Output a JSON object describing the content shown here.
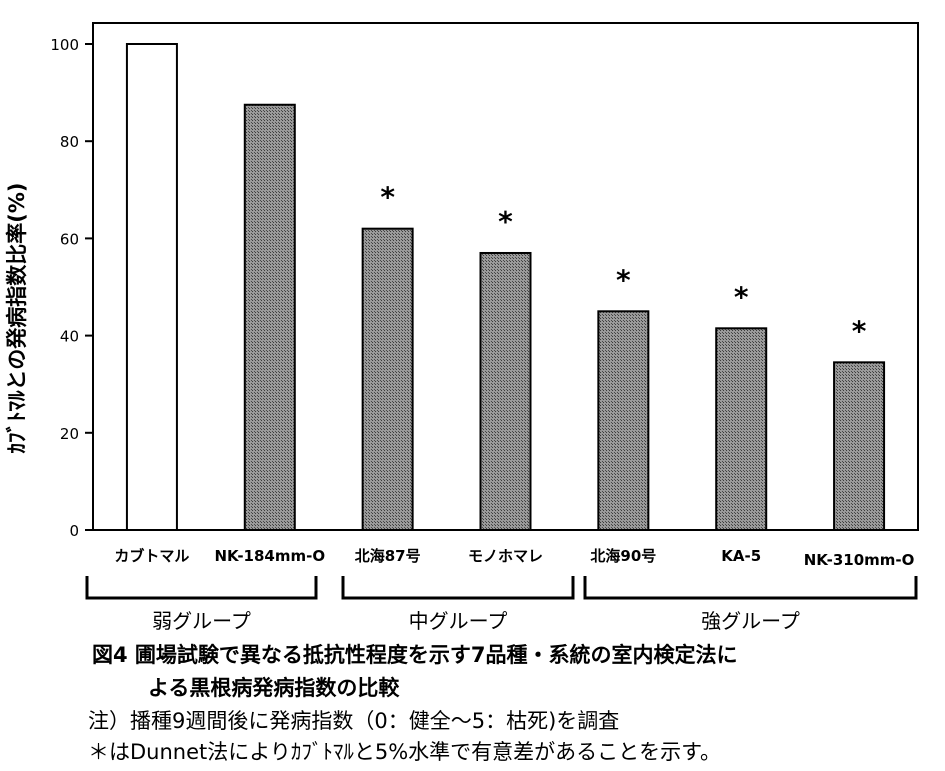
{
  "chart_data": {
    "type": "bar",
    "categories": [
      "カブトマル",
      "NK-184mm-O",
      "北海87号",
      "モノホマレ",
      "北海90号",
      "KA-5",
      "NK-310mm-O"
    ],
    "values": [
      100,
      87.5,
      62,
      57,
      45,
      41.5,
      34.5
    ],
    "significant": [
      false,
      false,
      true,
      true,
      true,
      true,
      true
    ],
    "significance_mark": "*",
    "bar_colors": [
      "#ffffff",
      "#8f8f8f",
      "#8f8f8f",
      "#8f8f8f",
      "#8f8f8f",
      "#8f8f8f",
      "#8f8f8f"
    ],
    "ylabel": "ｶﾌﾞﾄﾏﾙとの発病指数比率(%)",
    "ylim": [
      0,
      100
    ],
    "yticks": [
      0,
      20,
      40,
      60,
      80,
      100
    ],
    "grid": false,
    "groups": [
      {
        "label": "弱グループ",
        "start": 0,
        "end": 1
      },
      {
        "label": "中グループ",
        "start": 2,
        "end": 3
      },
      {
        "label": "強グループ",
        "start": 4,
        "end": 6
      }
    ]
  },
  "caption": {
    "title_line1": "図4 圃場試験で異なる抵抗性程度を示す7品種・系統の室内検定法に",
    "title_line2": "よる黒根病発病指数の比較",
    "note1": "注）播種9週間後に発病指数（0：健全〜5：枯死)を調査",
    "note2": "＊はDunnet法によりｶﾌﾞﾄﾏﾙと5%水準で有意差があることを示す。"
  }
}
